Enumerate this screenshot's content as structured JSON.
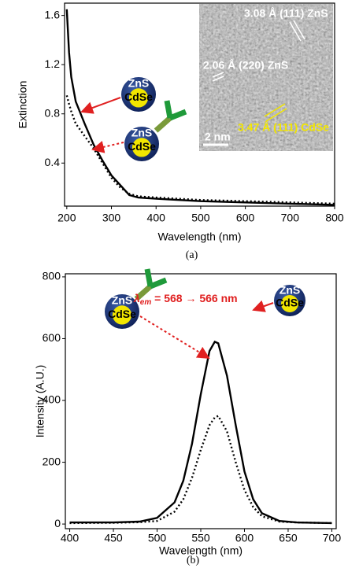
{
  "chart_data": [
    {
      "type": "line",
      "x_label": "Wavelength (nm)",
      "y_label": "Extinction",
      "caption": "(a)",
      "x": [
        200,
        205,
        210,
        220,
        240,
        260,
        280,
        300,
        320,
        340,
        360,
        400,
        500,
        600,
        700,
        800
      ],
      "series": [
        {
          "color": "#000000",
          "dash": false,
          "values": [
            1.65,
            1.3,
            1.1,
            0.9,
            0.72,
            0.55,
            0.42,
            0.3,
            0.22,
            0.14,
            0.12,
            0.11,
            0.09,
            0.08,
            0.07,
            0.06
          ]
        },
        {
          "color": "#000000",
          "dash": true,
          "values": [
            0.95,
            0.88,
            0.82,
            0.72,
            0.62,
            0.52,
            0.4,
            0.28,
            0.2,
            0.15,
            0.13,
            0.12,
            0.1,
            0.09,
            0.08,
            0.07
          ]
        }
      ],
      "xlim": [
        195,
        800
      ],
      "xticks": [
        200,
        300,
        400,
        500,
        600,
        700,
        800
      ],
      "ylim": [
        0.05,
        1.7
      ],
      "yticks": [
        0.4,
        0.8,
        1.2,
        1.6
      ],
      "inset_labels": [
        "3.08 Å (111) ZnS",
        "2.06 Å (220) ZnS",
        "3.47 Å (111) CdSe",
        "2 nm"
      ],
      "icons": [
        {
          "shell": "ZnS",
          "core": "CdSe"
        },
        {
          "shell": "ZnS",
          "core": "CdSe"
        }
      ]
    },
    {
      "type": "line",
      "x_label": "Wavelength (nm)",
      "y_label": "Intensity (A.U.)",
      "caption": "(b)",
      "x": [
        400,
        450,
        480,
        500,
        520,
        530,
        540,
        550,
        560,
        566,
        570,
        580,
        590,
        600,
        610,
        620,
        640,
        660,
        700
      ],
      "series": [
        {
          "color": "#000000",
          "dash": false,
          "values": [
            5,
            5,
            8,
            20,
            70,
            140,
            260,
            420,
            560,
            590,
            585,
            480,
            320,
            170,
            80,
            35,
            10,
            5,
            3
          ]
        },
        {
          "color": "#000000",
          "dash": true,
          "values": [
            3,
            4,
            6,
            10,
            40,
            80,
            150,
            240,
            320,
            345,
            350,
            300,
            200,
            110,
            55,
            25,
            8,
            5,
            3
          ]
        }
      ],
      "xlim": [
        395,
        705
      ],
      "xticks": [
        400,
        450,
        500,
        550,
        600,
        650,
        700
      ],
      "ylim": [
        -15,
        810
      ],
      "yticks": [
        0,
        200,
        400,
        600,
        800
      ],
      "annotation": {
        "symbol": "λ",
        "subscript": "em",
        "text": " = 568 → 566 nm"
      },
      "icons": [
        {
          "shell": "ZnS",
          "core": "CdSe"
        },
        {
          "shell": "ZnS",
          "core": "CdSe"
        }
      ]
    }
  ]
}
